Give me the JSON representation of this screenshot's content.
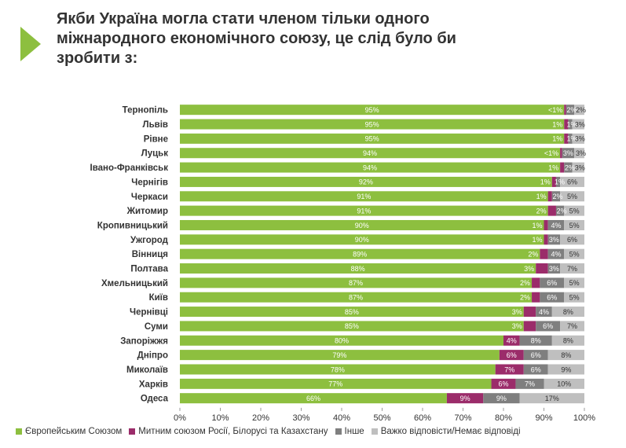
{
  "title": "Якби Україна могла стати членом тільки одного\nміжнародного економічного союзу, це слід було би\nзробити з:",
  "colors": {
    "eu": "#8dbf3f",
    "customs": "#9b2c6a",
    "other": "#7f7f7f",
    "hard": "#bfbfbf",
    "title": "#333333",
    "logo": "#8dbf3f"
  },
  "legend": [
    {
      "label": "Європейським Союзом",
      "color": "#8dbf3f"
    },
    {
      "label": "Митним союзом Росії, Білорусі та Казахстану",
      "color": "#9b2c6a"
    },
    {
      "label": "Інше",
      "color": "#7f7f7f"
    },
    {
      "label": "Важко відповісти/Немає відповіді",
      "color": "#bfbfbf"
    }
  ],
  "chart_data": {
    "type": "bar",
    "orientation": "horizontal",
    "stacked": true,
    "categories": [
      "Тернопіль",
      "Львів",
      "Рівне",
      "Луцьк",
      "Івано-Франківськ",
      "Чернігів",
      "Черкаси",
      "Житомир",
      "Кропивницький",
      "Ужгород",
      "Вінниця",
      "Полтава",
      "Хмельницький",
      "Київ",
      "Чернівці",
      "Суми",
      "Запоріжжя",
      "Дніпро",
      "Миколаїв",
      "Харків",
      "Одеса"
    ],
    "series": [
      {
        "name": "Європейським Союзом",
        "color": "#8dbf3f",
        "values": [
          95,
          95,
          95,
          94,
          94,
          92,
          91,
          91,
          90,
          90,
          89,
          88,
          87,
          87,
          85,
          85,
          80,
          79,
          78,
          77,
          66
        ],
        "labels": [
          "95%",
          "95%",
          "95%",
          "94%",
          "94%",
          "92%",
          "91%",
          "91%",
          "90%",
          "90%",
          "89%",
          "88%",
          "87%",
          "87%",
          "85%",
          "85%",
          "80%",
          "79%",
          "78%",
          "77%",
          "66%"
        ]
      },
      {
        "name": "Митним союзом Росії, Білорусі та Казахстану",
        "color": "#9b2c6a",
        "values": [
          0.5,
          1,
          1,
          0.5,
          1,
          1,
          1,
          2,
          1,
          1,
          2,
          3,
          2,
          2,
          3,
          3,
          4,
          6,
          7,
          6,
          9
        ],
        "labels": [
          "<1%",
          "1%",
          "1%",
          "<1%",
          "1%",
          "1%",
          "1%",
          "2%",
          "1%",
          "1%",
          "2%",
          "3%",
          "2%",
          "2%",
          "3%",
          "3%",
          "4%",
          "6%",
          "7%",
          "6%",
          "9%"
        ]
      },
      {
        "name": "Інше",
        "color": "#7f7f7f",
        "values": [
          2,
          1,
          1,
          3,
          2,
          1,
          2,
          2,
          4,
          3,
          4,
          3,
          6,
          6,
          4,
          6,
          8,
          6,
          6,
          7,
          9
        ],
        "labels": [
          "2%",
          "1%",
          "1%",
          "3%",
          "2%",
          "1%",
          "2%",
          "2%",
          "4%",
          "3%",
          "4%",
          "3%",
          "6%",
          "6%",
          "4%",
          "6%",
          "8%",
          "6%",
          "6%",
          "7%",
          "9%"
        ]
      },
      {
        "name": "Важко відповісти/Немає відповіді",
        "color": "#bfbfbf",
        "values": [
          2,
          3,
          3,
          3,
          3,
          6,
          5,
          5,
          5,
          6,
          5,
          7,
          5,
          5,
          8,
          7,
          8,
          8,
          9,
          10,
          17
        ],
        "labels": [
          "2%",
          "3%",
          "3%",
          "3%",
          "3%",
          "6%",
          "5%",
          "5%",
          "5%",
          "6%",
          "5%",
          "7%",
          "5%",
          "5%",
          "8%",
          "7%",
          "8%",
          "8%",
          "9%",
          "10%",
          "17%"
        ]
      }
    ],
    "xlim": [
      0,
      100
    ],
    "xticks": [
      "0%",
      "10%",
      "20%",
      "30%",
      "40%",
      "50%",
      "60%",
      "70%",
      "80%",
      "90%",
      "100%"
    ],
    "legend_position": "bottom"
  }
}
